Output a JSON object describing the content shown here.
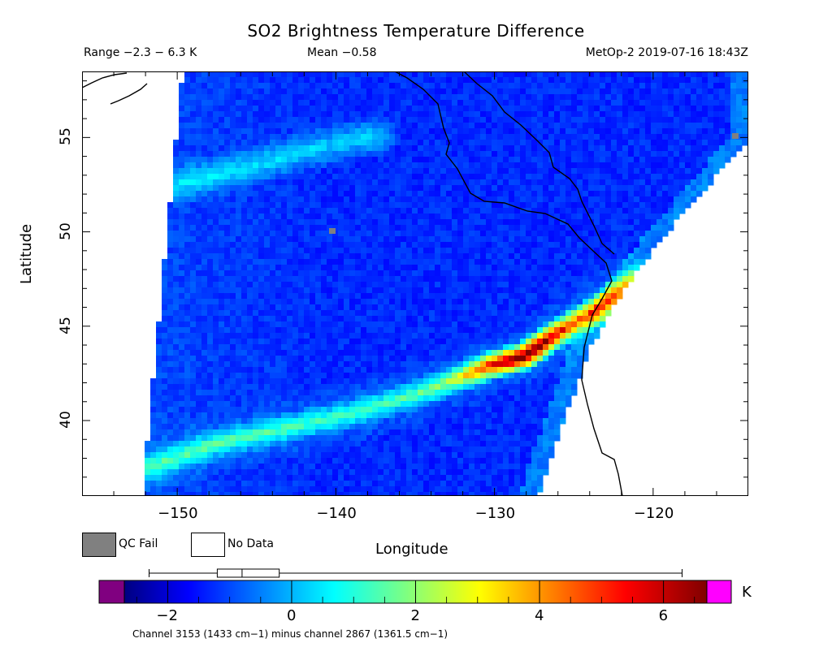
{
  "header": {
    "title": "SO2 Brightness Temperature Difference",
    "range": "Range −2.3 − 6.3 K",
    "mean": "Mean −0.58",
    "satellite": "MetOp-2 2019-07-16 18:43Z"
  },
  "chart_data": {
    "type": "heatmap",
    "title": "SO2 Brightness Temperature Difference",
    "xlabel": "Longitude",
    "ylabel": "Latitude",
    "xlim": [
      -156,
      -114
    ],
    "ylim": [
      36,
      58.5
    ],
    "x_ticks": [
      -150,
      -140,
      -130,
      -120
    ],
    "x_tick_labels": [
      "−150",
      "−140",
      "−130",
      "−120"
    ],
    "y_ticks": [
      40,
      45,
      50,
      55
    ],
    "y_tick_labels": [
      "40",
      "45",
      "50",
      "55"
    ],
    "value_range": [
      -2.3,
      6.3
    ],
    "mean": -0.58,
    "units": "K",
    "plume_peak": {
      "lon": -129.5,
      "lat": 43.2,
      "value": 6.0
    },
    "legend": [
      {
        "label": "QC Fail",
        "color": "#808080"
      },
      {
        "label": "No Data",
        "color": "#ffffff"
      }
    ],
    "colorbar": {
      "min": -2.7,
      "max": 6.7,
      "ticks": [
        -2,
        0,
        2,
        4,
        6
      ],
      "tick_labels": [
        "−2",
        "0",
        "2",
        "4",
        "6"
      ],
      "under_color": "#800080",
      "over_color": "#ff00ff",
      "unit": "K",
      "boxplot": {
        "whisker_low": -2.3,
        "q1": -1.2,
        "median": -0.8,
        "q3": -0.2,
        "whisker_high": 6.3
      }
    },
    "footnote": "Channel 3153 (1433 cm−1) minus channel 2867 (1361.5 cm−1)"
  },
  "colors": {
    "qc_fail": "#808080",
    "no_data": "#ffffff",
    "under": "#800080",
    "over": "#ff00ff",
    "coastline": "#000000"
  }
}
